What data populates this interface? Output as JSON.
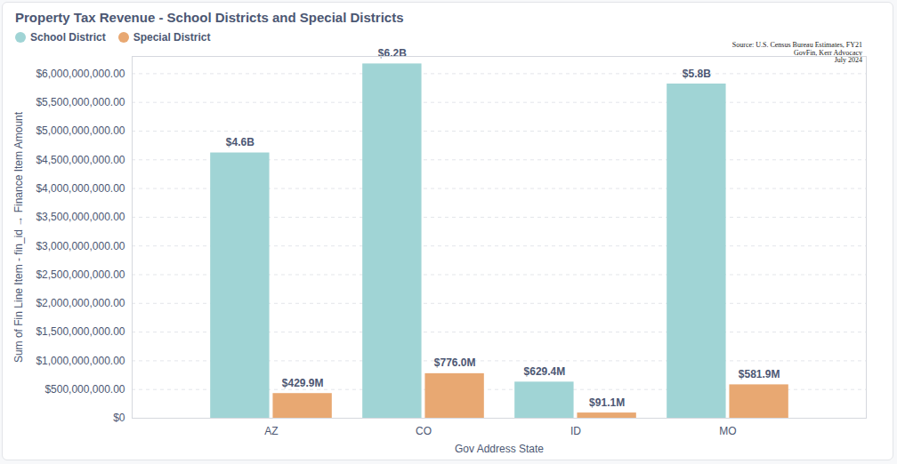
{
  "chart_data": {
    "type": "bar",
    "title": "Property Tax Revenue - School Districts and Special Districts",
    "source": [
      "Source: U.S. Census Bureau Estimates, FY21",
      "GovFin, Kerr Advocacy",
      "July 2024"
    ],
    "x_label": "Gov Address State",
    "y_label": "Sum of Fin Line Item - fin_id → Finance Item Amount",
    "categories": [
      "AZ",
      "CO",
      "ID",
      "MO"
    ],
    "series": [
      {
        "name": "School District",
        "color": "#a0d4d5",
        "values": [
          4620000000,
          6170000000,
          629400000,
          5820000000
        ],
        "value_labels": [
          "$4.6B",
          "$6.2B",
          "$629.4M",
          "$5.8B"
        ]
      },
      {
        "name": "Special District",
        "color": "#e8a872",
        "values": [
          429900000,
          776000000,
          91100000,
          581900000
        ],
        "value_labels": [
          "$429.9M",
          "$776.0M",
          "$91.1M",
          "$581.9M"
        ]
      }
    ],
    "ylim": [
      0,
      6300000000
    ],
    "yticks": [
      {
        "value": 0,
        "label": "$0"
      },
      {
        "value": 500000000,
        "label": "$500,000,000.00"
      },
      {
        "value": 1000000000,
        "label": "$1,000,000,000.00"
      },
      {
        "value": 1500000000,
        "label": "$1,500,000,000.00"
      },
      {
        "value": 2000000000,
        "label": "$2,000,000,000.00"
      },
      {
        "value": 2500000000,
        "label": "$2,500,000,000.00"
      },
      {
        "value": 3000000000,
        "label": "$3,000,000,000.00"
      },
      {
        "value": 3500000000,
        "label": "$3,500,000,000.00"
      },
      {
        "value": 4000000000,
        "label": "$4,000,000,000.00"
      },
      {
        "value": 4500000000,
        "label": "$4,500,000,000.00"
      },
      {
        "value": 5000000000,
        "label": "$5,000,000,000.00"
      },
      {
        "value": 5500000000,
        "label": "$5,500,000,000.00"
      },
      {
        "value": 6000000000,
        "label": "$6,000,000,000.00"
      }
    ],
    "grid": true,
    "legend": "top-left",
    "data_labels": true
  }
}
